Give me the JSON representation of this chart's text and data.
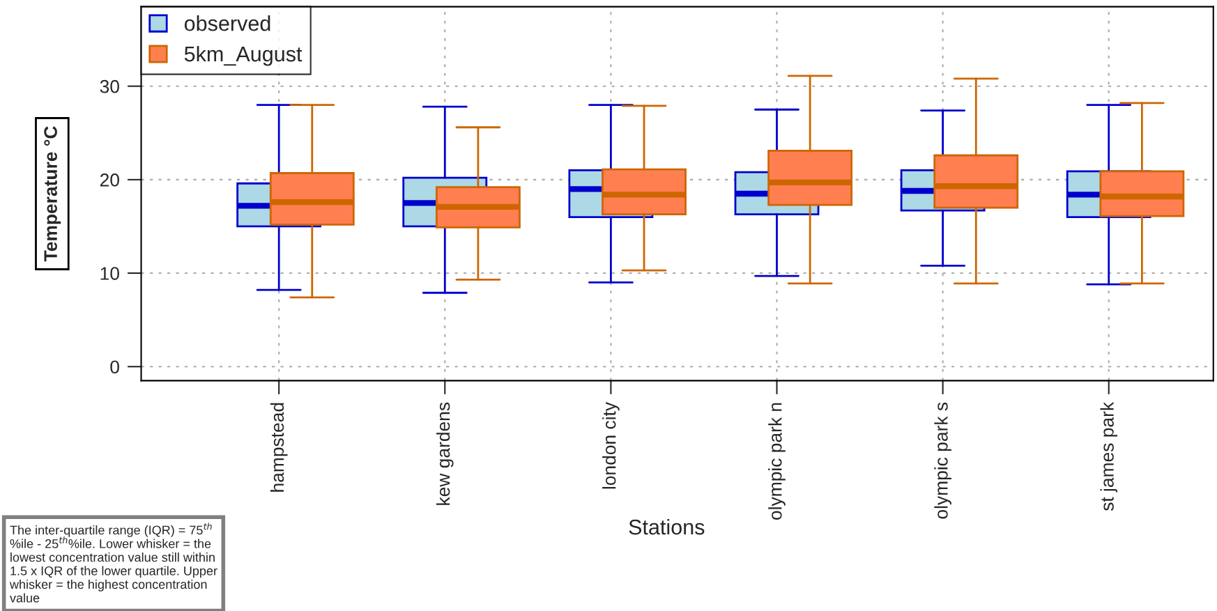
{
  "chart_data": {
    "type": "box",
    "categories": [
      "hampstead",
      "kew gardens",
      "london city",
      "olympic park n",
      "olympic park s",
      "st james park"
    ],
    "xlabel": "Stations",
    "ylabel": "Temperature °C",
    "ylim": [
      -1.5,
      38.5
    ],
    "yticks": [
      0,
      10,
      20,
      30
    ],
    "grid": true,
    "legend": "top left",
    "annotations": [
      "The inter-quartile range (IQR) = 75$^{th}$ %ile - 25$^{th}$%ile. Lower whisker = the lowest concentration value still within 1.5 x IQR of the lower quartile. Upper whisker = the highest concentration value"
    ],
    "series": [
      {
        "name": "observed",
        "color": "#add8e6",
        "boxes": [
          {
            "low": 8.2,
            "q1": 15.0,
            "median": 17.2,
            "q3": 19.6,
            "high": 28.0
          },
          {
            "low": 7.9,
            "q1": 15.0,
            "median": 17.5,
            "q3": 20.2,
            "high": 27.8
          },
          {
            "low": 9.0,
            "q1": 16.0,
            "median": 19.0,
            "q3": 21.0,
            "high": 28.0
          },
          {
            "low": 9.7,
            "q1": 16.3,
            "median": 18.5,
            "q3": 20.8,
            "high": 27.5
          },
          {
            "low": 10.8,
            "q1": 16.7,
            "median": 18.8,
            "q3": 21.0,
            "high": 27.4
          },
          {
            "low": 8.8,
            "q1": 16.0,
            "median": 18.4,
            "q3": 20.9,
            "high": 28.0
          }
        ]
      },
      {
        "name": "5km_August",
        "color": "#ff7f50",
        "boxes": [
          {
            "low": 7.4,
            "q1": 15.2,
            "median": 17.6,
            "q3": 20.7,
            "high": 28.0
          },
          {
            "low": 9.3,
            "q1": 14.9,
            "median": 17.1,
            "q3": 19.2,
            "high": 25.6
          },
          {
            "low": 10.3,
            "q1": 16.3,
            "median": 18.4,
            "q3": 21.1,
            "high": 27.9
          },
          {
            "low": 8.9,
            "q1": 17.3,
            "median": 19.7,
            "q3": 23.1,
            "high": 31.1
          },
          {
            "low": 8.9,
            "q1": 17.0,
            "median": 19.3,
            "q3": 22.6,
            "high": 30.8
          },
          {
            "low": 8.9,
            "q1": 16.1,
            "median": 18.2,
            "q3": 20.9,
            "high": 28.2
          }
        ]
      }
    ]
  }
}
